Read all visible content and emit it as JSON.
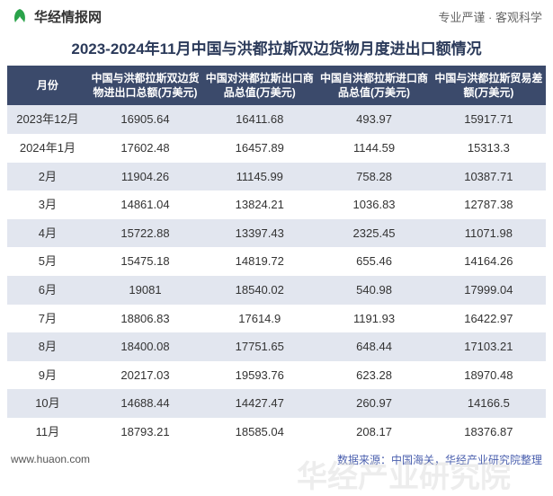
{
  "brand": {
    "name": "华经情报网",
    "icon_color": "#2aa34a",
    "tagline": "专业严谨 · 客观科学"
  },
  "title": "2023-2024年11月中国与洪都拉斯双边货物月度进出口额情况",
  "watermark_text": "华经产业研究院",
  "table": {
    "type": "table",
    "background_color_header": "#3b4a6b",
    "header_text_color": "#ffffff",
    "row_stripe_color": "#e2e6ef",
    "row_alt_color": "#ffffff",
    "cell_text_color": "#333333",
    "font_size_header": 12,
    "font_size_cell": 13,
    "columns": [
      "月份",
      "中国与洪都拉斯双边货物进出口总额(万美元)",
      "中国对洪都拉斯出口商品总值(万美元)",
      "中国自洪都拉斯进口商品总值(万美元)",
      "中国与洪都拉斯贸易差额(万美元)"
    ],
    "rows": [
      [
        "2023年12月",
        "16905.64",
        "16411.68",
        "493.97",
        "15917.71"
      ],
      [
        "2024年1月",
        "17602.48",
        "16457.89",
        "1144.59",
        "15313.3"
      ],
      [
        "2月",
        "11904.26",
        "11145.99",
        "758.28",
        "10387.71"
      ],
      [
        "3月",
        "14861.04",
        "13824.21",
        "1036.83",
        "12787.38"
      ],
      [
        "4月",
        "15722.88",
        "13397.43",
        "2325.45",
        "11071.98"
      ],
      [
        "5月",
        "15475.18",
        "14819.72",
        "655.46",
        "14164.26"
      ],
      [
        "6月",
        "19081",
        "18540.02",
        "540.98",
        "17999.04"
      ],
      [
        "7月",
        "18806.83",
        "17614.9",
        "1191.93",
        "16422.97"
      ],
      [
        "8月",
        "18400.08",
        "17751.65",
        "648.44",
        "17103.21"
      ],
      [
        "9月",
        "20217.03",
        "19593.76",
        "623.28",
        "18970.48"
      ],
      [
        "10月",
        "14688.44",
        "14427.47",
        "260.97",
        "14166.5"
      ],
      [
        "11月",
        "18793.21",
        "18585.04",
        "208.17",
        "18376.87"
      ]
    ]
  },
  "footer": {
    "url": "www.huaon.com",
    "source_label": "数据来源：中国海关，华经产业研究院整理"
  }
}
